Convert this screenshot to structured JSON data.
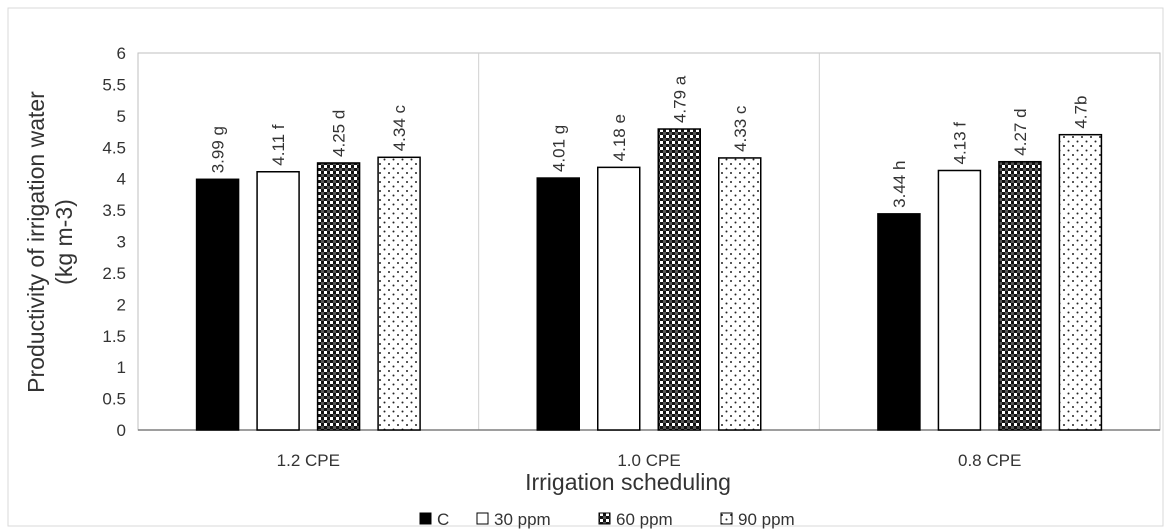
{
  "chart_data": {
    "type": "bar",
    "title": "",
    "xlabel": "Irrigation scheduling",
    "ylabel_lines": [
      "Productivity of irrigation water",
      "(kg m-3)"
    ],
    "ylim": [
      0,
      6
    ],
    "ytick_step": 0.5,
    "yticks": [
      "0",
      "0.5",
      "1",
      "1.5",
      "2",
      "2.5",
      "3",
      "3.5",
      "4",
      "4.5",
      "5",
      "5.5",
      "6"
    ],
    "categories": [
      "1.2 CPE",
      "1.0 CPE",
      "0.8 CPE"
    ],
    "grid": "vertical category separators",
    "legend_position": "bottom",
    "series": [
      {
        "name": "C",
        "pattern": "solid-black",
        "values": [
          3.99,
          4.01,
          3.44
        ],
        "labels": [
          "3.99 g",
          "4.01 g",
          "3.44 h"
        ]
      },
      {
        "name": "30 ppm",
        "pattern": "white",
        "values": [
          4.11,
          4.18,
          4.13
        ],
        "labels": [
          "4.11 f",
          "4.18 e",
          "4.13 f"
        ]
      },
      {
        "name": "60 ppm",
        "pattern": "dense-checker",
        "values": [
          4.25,
          4.79,
          4.27
        ],
        "labels": [
          "4.25 d",
          "4.79 a",
          "4.27 d"
        ]
      },
      {
        "name": "90 ppm",
        "pattern": "sparse-dots",
        "values": [
          4.34,
          4.33,
          4.7
        ],
        "labels": [
          "4.34 c",
          "4.33 c",
          "4.7b"
        ]
      }
    ]
  },
  "colors": {
    "axis": "#7f7f7f",
    "text": "#333333",
    "bar_fill_dark": "#000000",
    "bar_stroke": "#000000"
  }
}
